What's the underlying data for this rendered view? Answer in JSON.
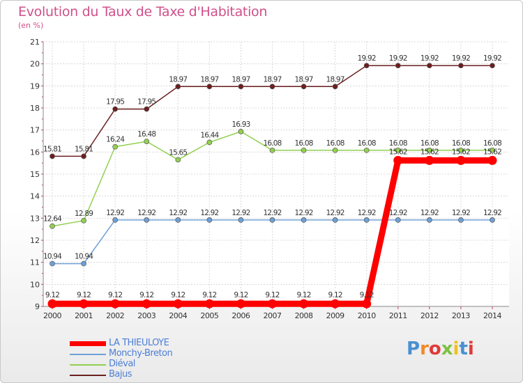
{
  "header": {
    "title": "Evolution du Taux de Taxe d'Habitation",
    "subtitle": "(en %)"
  },
  "logo": {
    "text": "Proxiti",
    "letter_colors": [
      "#4a90d0",
      "#f08a2a",
      "#e03a3a",
      "#7cc242",
      "#f0c020",
      "#4a90d0",
      "#e03a3a"
    ]
  },
  "chart_data": {
    "type": "line",
    "x": [
      "2000",
      "2001",
      "2002",
      "2003",
      "2004",
      "2005",
      "2006",
      "2007",
      "2008",
      "2009",
      "2010",
      "2011",
      "2012",
      "2013",
      "2014"
    ],
    "ylim": [
      9,
      21
    ],
    "yticks": [
      "9",
      "10",
      "11",
      "12",
      "13",
      "14",
      "15",
      "16",
      "17",
      "18",
      "19",
      "20",
      "21"
    ],
    "grid": true,
    "legend_position": "bottom-left",
    "series": [
      {
        "name": "LA THIEULOYE",
        "color": "#ff0000",
        "values": [
          9.12,
          9.12,
          9.12,
          9.12,
          9.12,
          9.12,
          9.12,
          9.12,
          9.12,
          9.12,
          9.12,
          15.62,
          15.62,
          15.62,
          15.62
        ],
        "labels": [
          "9.12",
          "9.12",
          "9.12",
          "9.12",
          "9.12",
          "9.12",
          "9.12",
          "9.12",
          "9.12",
          "9.12",
          "9.12",
          "15.62",
          "15.62",
          "15.62",
          "15.62"
        ]
      },
      {
        "name": "Monchy-Breton",
        "color": "#6fa0d6",
        "values": [
          10.94,
          10.94,
          12.92,
          12.92,
          12.92,
          12.92,
          12.92,
          12.92,
          12.92,
          12.92,
          12.92,
          12.92,
          12.92,
          12.92,
          12.92
        ],
        "labels": [
          "10.94",
          "10.94",
          "12.92",
          "12.92",
          "12.92",
          "12.92",
          "12.92",
          "12.92",
          "12.92",
          "12.92",
          "12.92",
          "12.92",
          "12.92",
          "12.92",
          "12.92"
        ]
      },
      {
        "name": "Diéval",
        "color": "#92d050",
        "values": [
          12.64,
          12.89,
          16.24,
          16.48,
          15.65,
          16.44,
          16.93,
          16.08,
          16.08,
          16.08,
          16.08,
          16.08,
          16.08,
          16.08,
          16.08
        ],
        "labels": [
          "12.64",
          "12.89",
          "16.24",
          "16.48",
          "15.65",
          "16.44",
          "16.93",
          "16.08",
          "16.08",
          "16.08",
          "16.08",
          "16.08",
          "16.08",
          "16.08",
          "16.08"
        ]
      },
      {
        "name": "Bajus",
        "color": "#6b1f1f",
        "values": [
          15.81,
          15.81,
          17.95,
          17.95,
          18.97,
          18.97,
          18.97,
          18.97,
          18.97,
          18.97,
          19.92,
          19.92,
          19.92,
          19.92,
          19.92
        ],
        "labels": [
          "15.81",
          "15.81",
          "17.95",
          "17.95",
          "18.97",
          "18.97",
          "18.97",
          "18.97",
          "18.97",
          "18.97",
          "19.92",
          "19.92",
          "19.92",
          "19.92",
          "19.92"
        ]
      }
    ]
  }
}
